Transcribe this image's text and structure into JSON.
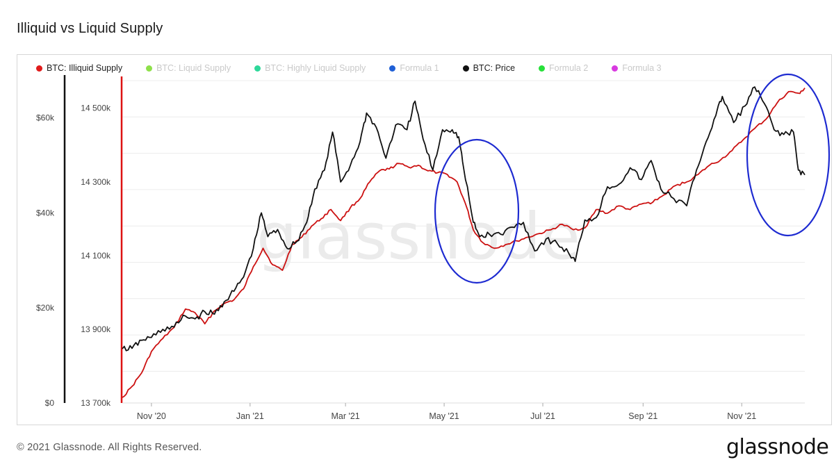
{
  "title": "Illiquid vs Liquid Supply",
  "watermark": "glassnode",
  "footer": {
    "copyright": "© 2021 Glassnode. All Rights Reserved.",
    "logo": "glassnode"
  },
  "legend": [
    {
      "label": "BTC: Illiquid Supply",
      "color": "#e01b1b",
      "active": true
    },
    {
      "label": "BTC: Liquid Supply",
      "color": "#8ee04a",
      "active": false
    },
    {
      "label": "BTC: Highly Liquid Supply",
      "color": "#2ed89a",
      "active": false
    },
    {
      "label": "Formula 1",
      "color": "#1f5fd6",
      "active": false
    },
    {
      "label": "BTC: Price",
      "color": "#111111",
      "active": true
    },
    {
      "label": "Formula 2",
      "color": "#27e03a",
      "active": false
    },
    {
      "label": "Formula 3",
      "color": "#d83ae0",
      "active": false
    }
  ],
  "chart_data": {
    "type": "line",
    "title": "Illiquid vs Liquid Supply",
    "x_tick_labels": [
      "Nov '20",
      "Jan '21",
      "Mar '21",
      "May '21",
      "Jul '21",
      "Sep '21",
      "Nov '21"
    ],
    "x_tick_dates": [
      "2020-11-01",
      "2021-01-01",
      "2021-03-01",
      "2021-05-01",
      "2021-07-01",
      "2021-09-01",
      "2021-11-01"
    ],
    "xlim": [
      "2020-10-14",
      "2021-12-10"
    ],
    "y_left_ticks": [
      "$0",
      "$20k",
      "$40k",
      "$60k"
    ],
    "y_left_values": [
      0,
      20000,
      40000,
      60000
    ],
    "y_left_lim": [
      0,
      69000
    ],
    "y_right_ticks": [
      "13 700k",
      "13 900k",
      "14 100k",
      "14 300k",
      "14 500k"
    ],
    "y_right_values": [
      13700000,
      13900000,
      14100000,
      14300000,
      14500000
    ],
    "y_right_lim": [
      13700000,
      14590000
    ],
    "grid": true,
    "legend_position": "top-left",
    "series": [
      {
        "name": "BTC: Illiquid Supply",
        "axis": "right",
        "color": "#cc1111",
        "x": [
          "2020-10-14",
          "2020-10-20",
          "2020-10-26",
          "2020-11-01",
          "2020-11-08",
          "2020-11-15",
          "2020-11-22",
          "2020-11-28",
          "2020-12-04",
          "2020-12-10",
          "2020-12-16",
          "2020-12-22",
          "2020-12-28",
          "2021-01-03",
          "2021-01-09",
          "2021-01-15",
          "2021-01-21",
          "2021-01-27",
          "2021-02-02",
          "2021-02-08",
          "2021-02-14",
          "2021-02-20",
          "2021-02-26",
          "2021-03-04",
          "2021-03-10",
          "2021-03-16",
          "2021-03-22",
          "2021-03-28",
          "2021-04-03",
          "2021-04-09",
          "2021-04-15",
          "2021-04-21",
          "2021-04-27",
          "2021-05-03",
          "2021-05-09",
          "2021-05-15",
          "2021-05-19",
          "2021-05-25",
          "2021-06-01",
          "2021-06-08",
          "2021-06-15",
          "2021-06-22",
          "2021-06-29",
          "2021-07-06",
          "2021-07-13",
          "2021-07-20",
          "2021-07-27",
          "2021-08-03",
          "2021-08-10",
          "2021-08-17",
          "2021-08-24",
          "2021-08-31",
          "2021-09-07",
          "2021-09-14",
          "2021-09-21",
          "2021-09-28",
          "2021-10-05",
          "2021-10-12",
          "2021-10-19",
          "2021-10-26",
          "2021-11-02",
          "2021-11-09",
          "2021-11-16",
          "2021-11-23",
          "2021-11-30",
          "2021-12-07",
          "2021-12-10"
        ],
        "values": [
          13715000,
          13745000,
          13782000,
          13840000,
          13875000,
          13905000,
          13955000,
          13945000,
          13915000,
          13950000,
          13970000,
          13980000,
          14010000,
          14070000,
          14120000,
          14075000,
          14060000,
          14130000,
          14150000,
          14180000,
          14200000,
          14225000,
          14195000,
          14230000,
          14255000,
          14300000,
          14330000,
          14335000,
          14350000,
          14340000,
          14345000,
          14330000,
          14325000,
          14320000,
          14300000,
          14230000,
          14170000,
          14135000,
          14120000,
          14130000,
          14140000,
          14150000,
          14160000,
          14170000,
          14185000,
          14170000,
          14175000,
          14225000,
          14215000,
          14235000,
          14225000,
          14240000,
          14245000,
          14265000,
          14290000,
          14300000,
          14320000,
          14345000,
          14360000,
          14385000,
          14415000,
          14445000,
          14470000,
          14515000,
          14545000,
          14540000,
          14555000
        ]
      },
      {
        "name": "BTC: Price",
        "axis": "left",
        "color": "#111111",
        "x": [
          "2020-10-14",
          "2020-10-20",
          "2020-10-26",
          "2020-11-01",
          "2020-11-08",
          "2020-11-15",
          "2020-11-22",
          "2020-11-28",
          "2020-12-04",
          "2020-12-10",
          "2020-12-16",
          "2020-12-22",
          "2020-12-28",
          "2021-01-03",
          "2021-01-08",
          "2021-01-12",
          "2021-01-18",
          "2021-01-24",
          "2021-01-30",
          "2021-02-05",
          "2021-02-10",
          "2021-02-16",
          "2021-02-21",
          "2021-02-26",
          "2021-03-04",
          "2021-03-10",
          "2021-03-14",
          "2021-03-20",
          "2021-03-26",
          "2021-04-01",
          "2021-04-08",
          "2021-04-13",
          "2021-04-18",
          "2021-04-24",
          "2021-04-30",
          "2021-05-06",
          "2021-05-10",
          "2021-05-13",
          "2021-05-19",
          "2021-05-23",
          "2021-05-29",
          "2021-06-05",
          "2021-06-12",
          "2021-06-19",
          "2021-06-26",
          "2021-07-03",
          "2021-07-10",
          "2021-07-17",
          "2021-07-21",
          "2021-07-27",
          "2021-08-03",
          "2021-08-10",
          "2021-08-17",
          "2021-08-24",
          "2021-08-31",
          "2021-09-06",
          "2021-09-12",
          "2021-09-20",
          "2021-09-28",
          "2021-10-04",
          "2021-10-10",
          "2021-10-16",
          "2021-10-20",
          "2021-10-27",
          "2021-11-03",
          "2021-11-09",
          "2021-11-15",
          "2021-11-21",
          "2021-11-27",
          "2021-12-03",
          "2021-12-06",
          "2021-12-10"
        ],
        "values": [
          11400,
          11500,
          13200,
          13800,
          15500,
          16000,
          18300,
          17700,
          19200,
          18700,
          21300,
          23500,
          26500,
          32500,
          40000,
          35000,
          36500,
          32500,
          34000,
          38000,
          45000,
          49000,
          57000,
          46500,
          50000,
          55000,
          61000,
          58000,
          51500,
          58500,
          57500,
          63500,
          55500,
          49000,
          57500,
          57500,
          56000,
          49500,
          38000,
          35000,
          35500,
          35500,
          37000,
          38000,
          32000,
          34500,
          33500,
          31500,
          29800,
          38500,
          39000,
          45500,
          46000,
          49500,
          47000,
          51000,
          45000,
          43000,
          41500,
          49000,
          55000,
          60500,
          64500,
          59000,
          62500,
          66500,
          63000,
          57500,
          56500,
          57000,
          49000,
          48000
        ]
      }
    ],
    "annotations": [
      {
        "type": "ellipse",
        "color": "#1e2bd1",
        "around": "May '21"
      },
      {
        "type": "ellipse",
        "color": "#1e2bd1",
        "around": "Nov '21"
      }
    ]
  }
}
